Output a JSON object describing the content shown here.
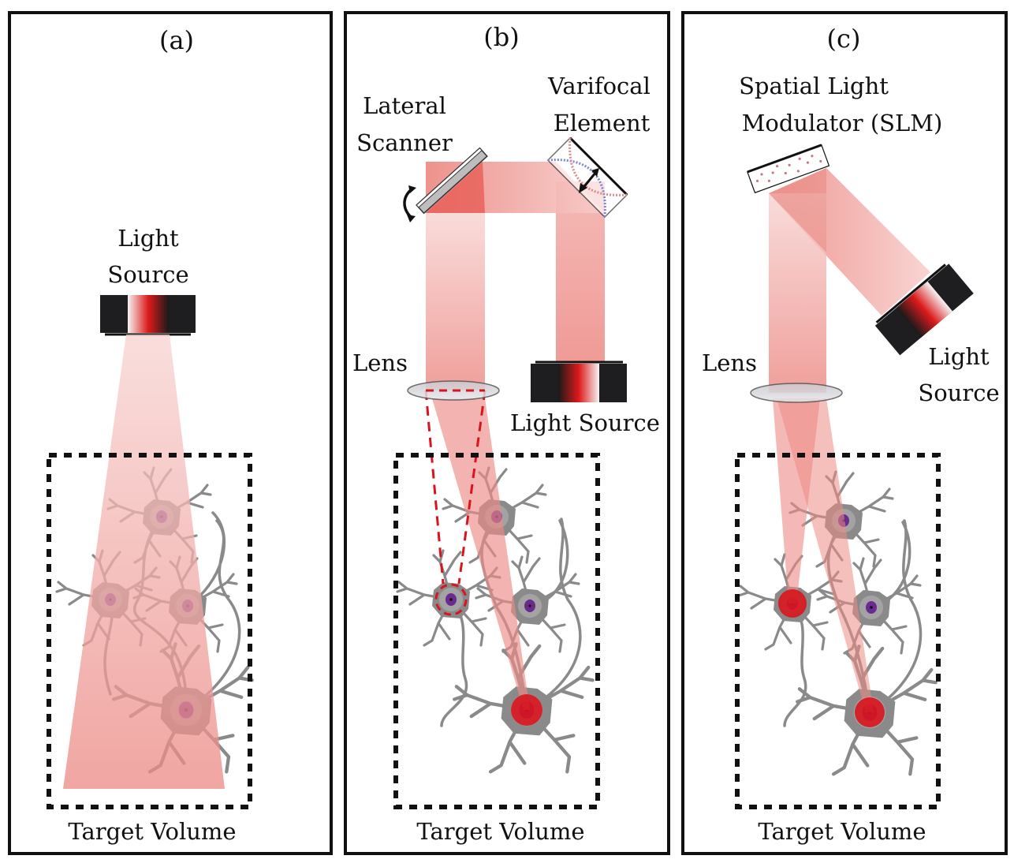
{
  "panels": [
    {
      "tag": "(a)",
      "labels": {
        "light_source_line1": "Light",
        "light_source_line2": "Source",
        "target": "Target Volume"
      }
    },
    {
      "tag": "(b)",
      "labels": {
        "scanner_line1": "Lateral",
        "scanner_line2": "Scanner",
        "varifocal_line1": "Varifocal",
        "varifocal_line2": "Element",
        "lens": "Lens",
        "light_source": "Light Source",
        "target": "Target Volume"
      }
    },
    {
      "tag": "(c)",
      "labels": {
        "slm_line1": "Spatial Light",
        "slm_line2": "Modulator (SLM)",
        "lens": "Lens",
        "light_source_line1": "Light",
        "light_source_line2": "Source",
        "target": "Target Volume"
      }
    }
  ],
  "colors": {
    "beam": "#e8706a",
    "focus": "#d8141c",
    "nucleus": "#6a2a90",
    "neuron": "#8a8a8a"
  }
}
